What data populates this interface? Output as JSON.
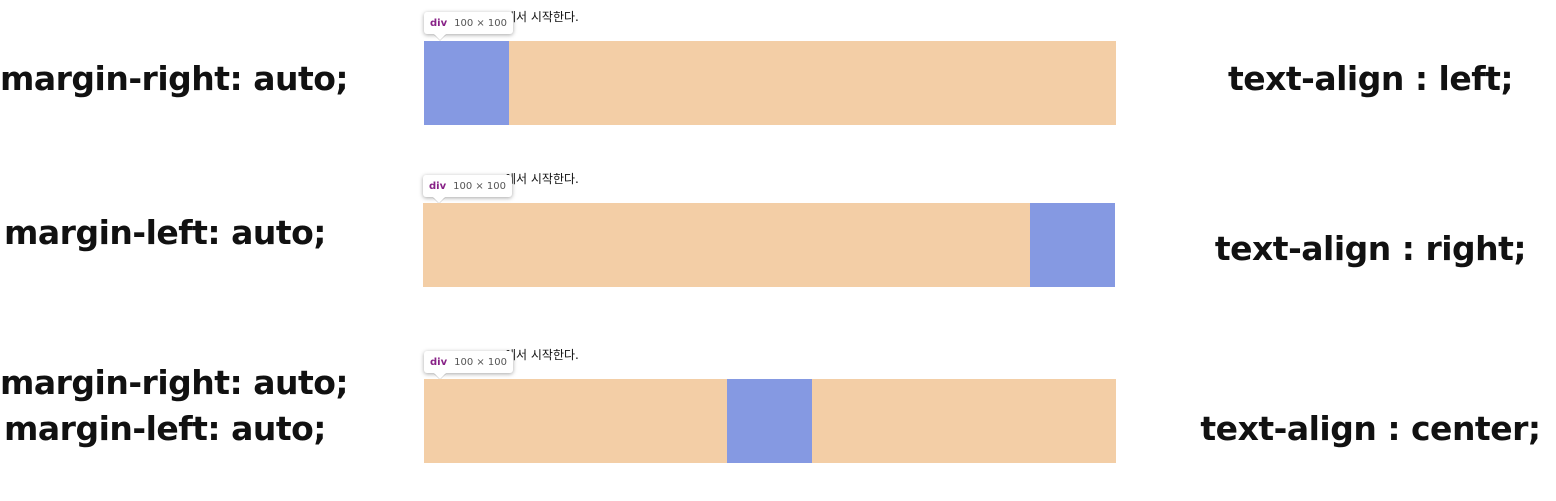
{
  "colors": {
    "container": "#f3cea6",
    "box": "#8599e2",
    "tooltip_tag": "#882287"
  },
  "caption_text": "에서 시작한다.",
  "tooltip": {
    "tag": "div",
    "dims": "100 × 100"
  },
  "rows": [
    {
      "left_lines": [
        "margin-right: auto;"
      ],
      "right_label": "text-align : left;",
      "box_position": "left"
    },
    {
      "left_lines": [
        "margin-left: auto;"
      ],
      "right_label": "text-align : right;",
      "box_position": "right"
    },
    {
      "left_lines": [
        "margin-right: auto;",
        "margin-left: auto;"
      ],
      "right_label": "text-align : center;",
      "box_position": "center"
    }
  ]
}
